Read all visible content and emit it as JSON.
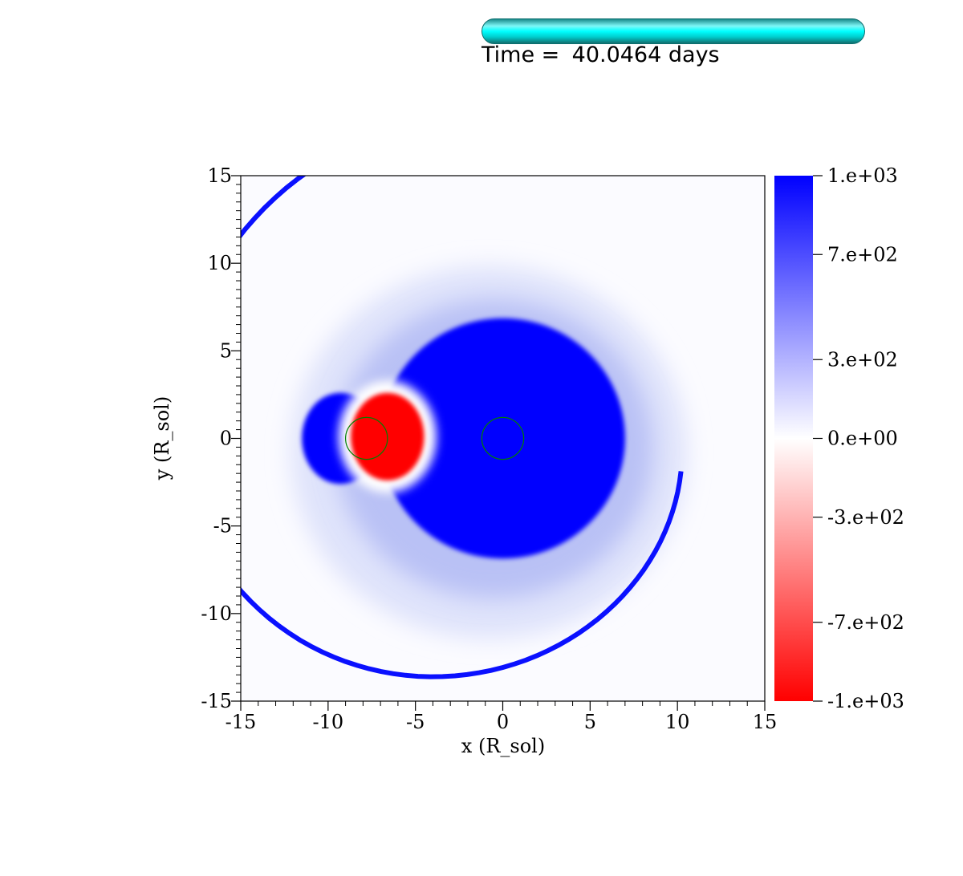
{
  "progress": {
    "fraction": 1.0,
    "color": "#00ffff"
  },
  "time": {
    "prefix": "Time =",
    "value": "40.0464",
    "unit": "days"
  },
  "chart_data": {
    "type": "heatmap",
    "title": "",
    "xlabel": "x (R_sol)",
    "ylabel": "y (R_sol)",
    "xlim": [
      -15,
      15
    ],
    "ylim": [
      -15,
      15
    ],
    "xticks": [
      -15,
      -10,
      -5,
      0,
      5,
      10,
      15
    ],
    "xtick_labels": [
      "-15",
      "-10",
      "-5",
      "0",
      "5",
      "10",
      "15"
    ],
    "yticks": [
      15,
      10,
      5,
      0,
      -5,
      -10,
      -15
    ],
    "ytick_labels": [
      "15",
      "10",
      "5",
      "0",
      "-5",
      "-10",
      "-15"
    ],
    "colorbar": {
      "min": -1000,
      "max": 1000,
      "ticks": [
        1000,
        700,
        300,
        0,
        -300,
        -700,
        -1000
      ],
      "tick_labels": [
        "1.e+03",
        "7.e+02",
        "3.e+02",
        "0.e+00",
        "-3.e+02",
        "-7.e+02",
        "-1.e+03"
      ],
      "colors": {
        "max": "#0000ff",
        "mid": "#ffffff",
        "min": "#ff0000"
      }
    },
    "features": {
      "blue_core": {
        "center": [
          0,
          0
        ],
        "radius": 7,
        "value": 1000
      },
      "blue_lobe": {
        "center": [
          -9.3,
          0
        ],
        "rx": 2.2,
        "ry": 2.6,
        "value": 1000
      },
      "red_blob": {
        "center": [
          -6.6,
          0.1
        ],
        "rx": 2.1,
        "ry": 2.5,
        "value": -1000
      },
      "shock_front_point_count": 9
    },
    "markers": [
      {
        "name": "companion",
        "x": -7.8,
        "y": 0,
        "r": 1.2,
        "color": "#008000"
      },
      {
        "name": "primary",
        "x": 0,
        "y": 0,
        "r": 1.2,
        "color": "#008000"
      }
    ]
  }
}
